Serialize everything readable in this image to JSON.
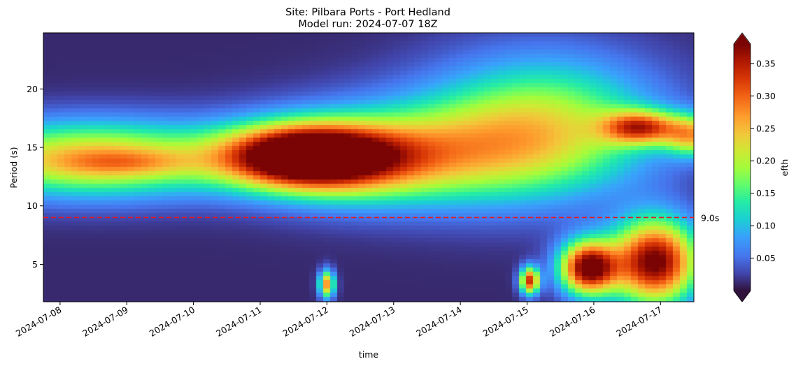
{
  "chart_data": {
    "type": "heatmap",
    "title": [
      "Site: Pilbara Ports - Port Hedland",
      "Model run: 2024-07-07 18Z"
    ],
    "xlabel": "time",
    "ylabel": "Period (s)",
    "x_range": [
      "2024-07-07T18:00",
      "2024-07-17T12:00"
    ],
    "x_ticks": [
      "2024-07-08",
      "2024-07-09",
      "2024-07-10",
      "2024-07-11",
      "2024-07-12",
      "2024-07-13",
      "2024-07-14",
      "2024-07-15",
      "2024-07-16",
      "2024-07-17"
    ],
    "ylim": [
      1.8,
      24.8
    ],
    "y_ticks": [
      "5",
      "10",
      "15",
      "20"
    ],
    "colormap": "turbo",
    "colorbar": {
      "label": "efth",
      "range": [
        0,
        0.38
      ],
      "ticks": [
        "0.05",
        "0.10",
        "0.15",
        "0.20",
        "0.25",
        "0.30",
        "0.35"
      ],
      "extend": "both"
    },
    "reference_line": {
      "y": 9.0,
      "label": "9.0s",
      "color": "#e8191b",
      "style": "dashed"
    },
    "energy_features": [
      {
        "time": "2024-07-08T12:00",
        "period": 14.0,
        "time_width_days": 1.5,
        "period_width": 2.2,
        "efth": 0.24
      },
      {
        "time": "2024-07-09T00:00",
        "period": 13.7,
        "time_width_days": 0.7,
        "period_width": 0.8,
        "efth": 0.06
      },
      {
        "time": "2024-07-11T14:00",
        "period": 14.3,
        "time_width_days": 0.8,
        "period_width": 1.8,
        "efth": 0.32
      },
      {
        "time": "2024-07-12T06:00",
        "period": 13.9,
        "time_width_days": 1.0,
        "period_width": 2.2,
        "efth": 0.18
      },
      {
        "time": "2024-07-13T12:00",
        "period": 14.5,
        "time_width_days": 1.5,
        "period_width": 3.0,
        "efth": 0.16
      },
      {
        "time": "2024-07-15T06:00",
        "period": 17.0,
        "time_width_days": 1.2,
        "period_width": 4.0,
        "efth": 0.18
      },
      {
        "time": "2024-07-16T17:00",
        "period": 16.7,
        "time_width_days": 0.4,
        "period_width": 1.0,
        "efth": 0.25
      },
      {
        "time": "2024-07-17T12:00",
        "period": 16.0,
        "time_width_days": 0.3,
        "period_width": 1.2,
        "efth": 0.2
      },
      {
        "time": "2024-07-12T00:00",
        "period": 3.3,
        "time_width_days": 0.08,
        "period_width": 0.8,
        "efth": 0.26
      },
      {
        "time": "2024-07-15T01:00",
        "period": 3.6,
        "time_width_days": 0.1,
        "period_width": 0.8,
        "efth": 0.32
      },
      {
        "time": "2024-07-15T22:00",
        "period": 4.7,
        "time_width_days": 0.3,
        "period_width": 1.6,
        "efth": 0.38
      },
      {
        "time": "2024-07-16T22:00",
        "period": 5.2,
        "time_width_days": 0.45,
        "period_width": 2.5,
        "efth": 0.38
      }
    ]
  }
}
